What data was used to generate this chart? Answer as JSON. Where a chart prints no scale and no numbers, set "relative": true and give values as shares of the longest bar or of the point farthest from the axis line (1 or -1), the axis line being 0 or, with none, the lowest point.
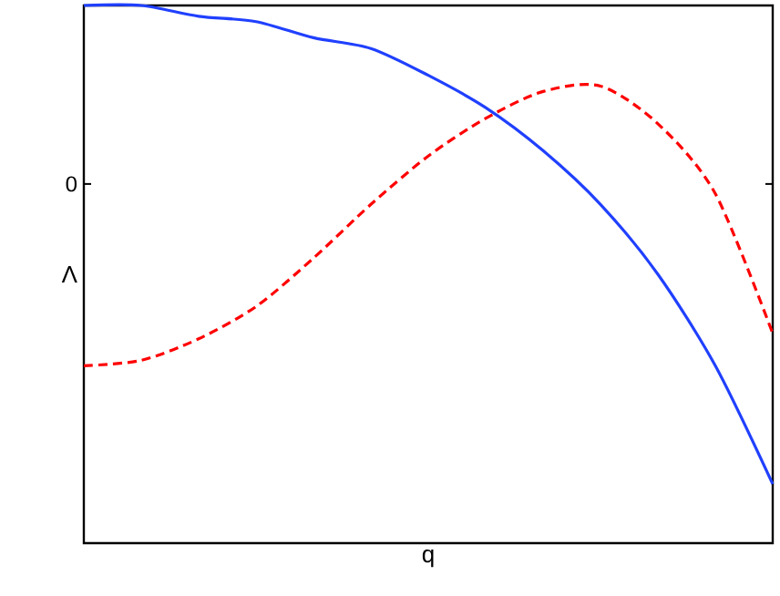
{
  "chart_data": {
    "type": "line",
    "xlabel": "q",
    "ylabel": "Λ",
    "relative": true,
    "categories": [
      null,
      null,
      null,
      null,
      null,
      null,
      null,
      null,
      null,
      null,
      null,
      null,
      null
    ],
    "annotations": [
      "0"
    ],
    "series": [
      {
        "color": "#2040ff",
        "line_style": "solid",
        "values": [
          1,
          1,
          0.98,
          0.97,
          0.94,
          0.92,
          0.87,
          0.81,
          0.73,
          0.63,
          0.5,
          0.33,
          0.11
        ]
      },
      {
        "color": "#ff0000",
        "line_style": "dashed",
        "values": [
          0.33,
          0.34,
          0.38,
          0.44,
          0.53,
          0.63,
          0.72,
          0.79,
          0.84,
          0.85,
          0.78,
          0.65,
          0.39
        ]
      }
    ]
  }
}
